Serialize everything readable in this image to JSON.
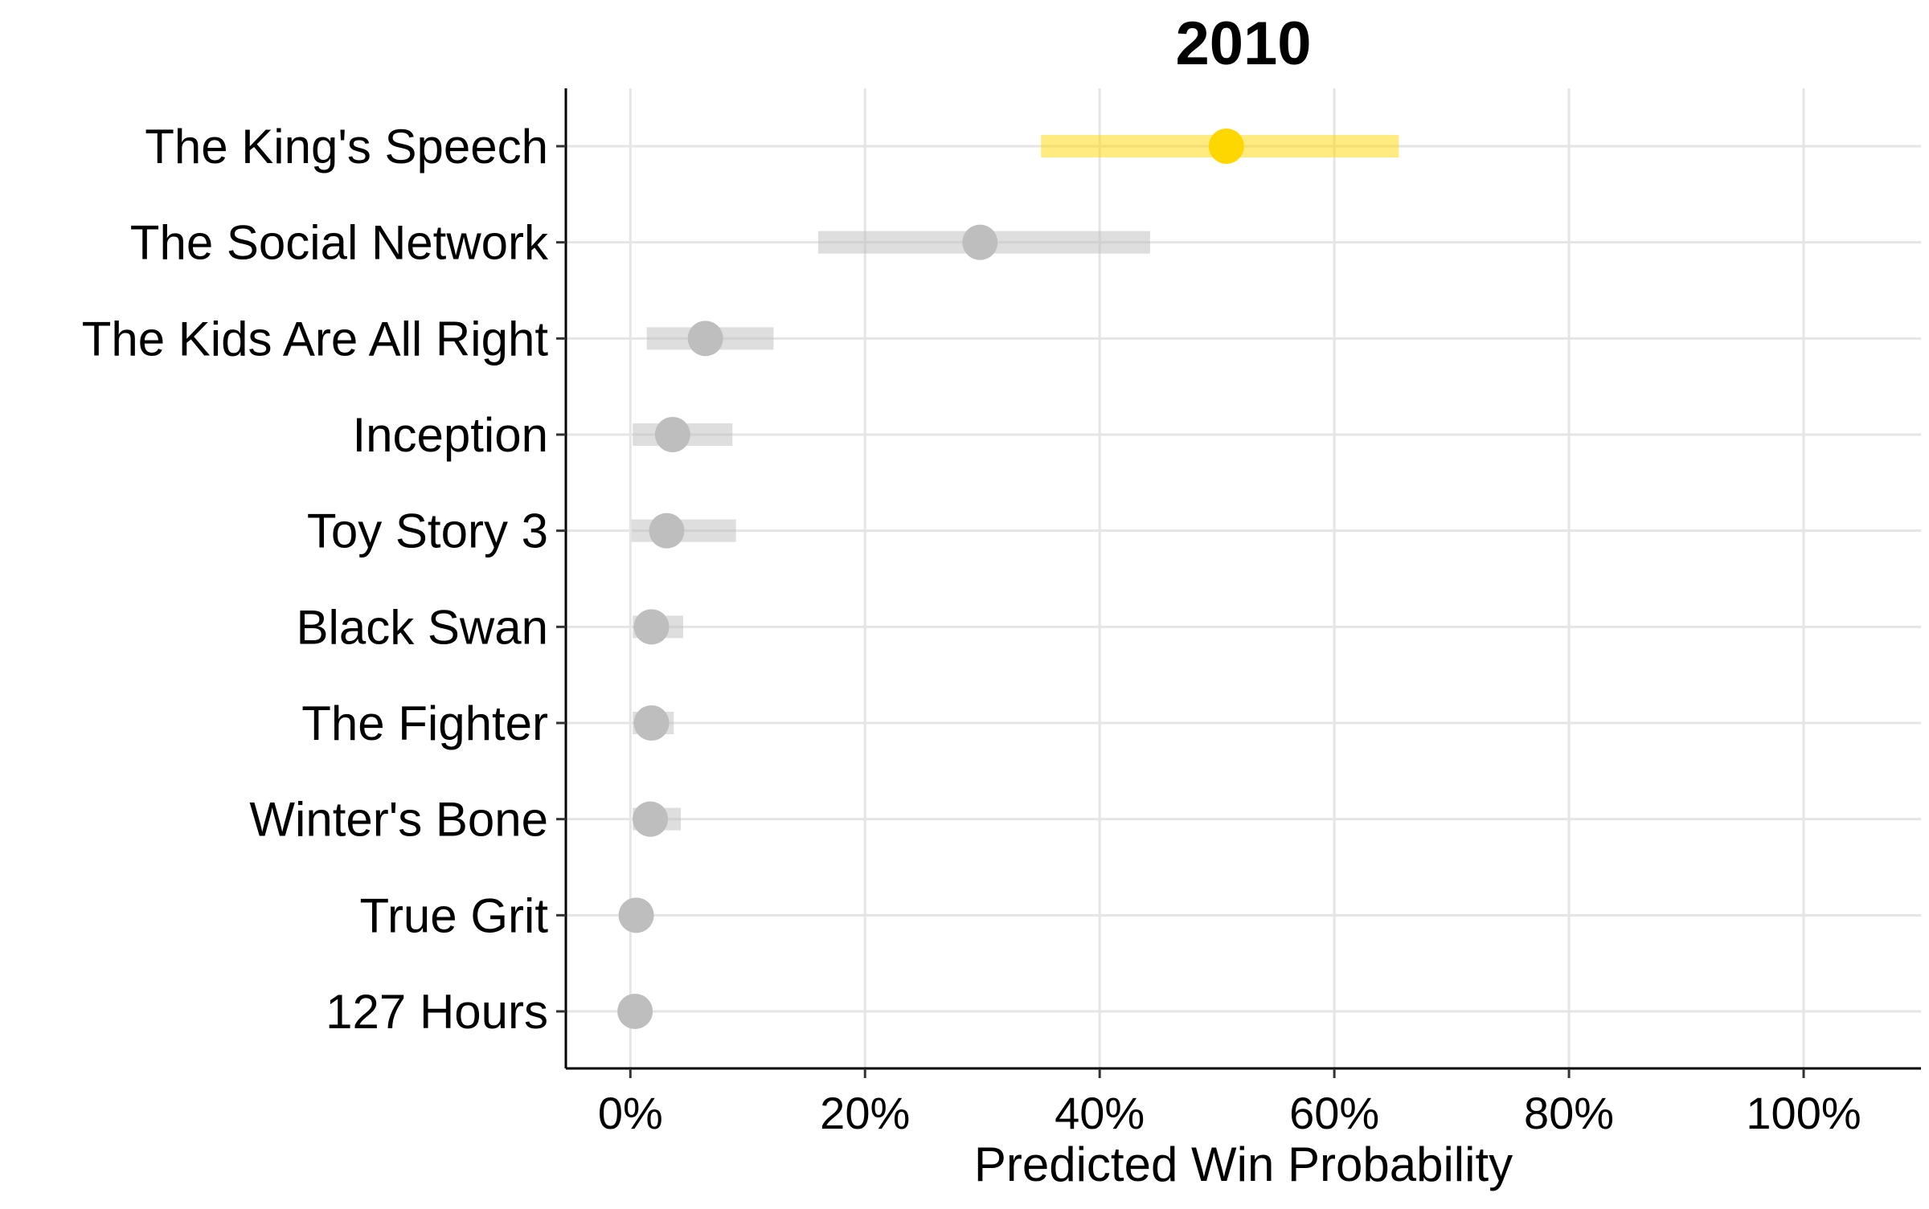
{
  "chart_data": {
    "type": "dot-interval",
    "title": "2010",
    "xlabel": "Predicted Win Probability",
    "ylabel": "",
    "xlim": [
      -0.055,
      1.1
    ],
    "x_ticks": [
      0,
      0.2,
      0.4,
      0.6,
      0.8,
      1.0
    ],
    "x_tick_labels": [
      "0%",
      "20%",
      "40%",
      "60%",
      "80%",
      "100%"
    ],
    "grid": true,
    "legend": "none",
    "colors": {
      "highlight": "#FFD700",
      "default": "#BEBEBE",
      "grid": "#E5E5E5",
      "axis": "#000000"
    },
    "categories": [
      "The King's Speech",
      "The Social Network",
      "The Kids Are All Right",
      "Inception",
      "Toy Story 3",
      "Black Swan",
      "The Fighter",
      "Winter's Bone",
      "True Grit",
      "127 Hours"
    ],
    "values": [
      0.508,
      0.298,
      0.064,
      0.036,
      0.031,
      0.018,
      0.018,
      0.017,
      0.005,
      0.004
    ],
    "lower": [
      0.35,
      0.16,
      0.014,
      0.002,
      0.001,
      0.002,
      0.002,
      0.002,
      0.0,
      0.0
    ],
    "upper": [
      0.655,
      0.443,
      0.122,
      0.087,
      0.09,
      0.045,
      0.037,
      0.043,
      0.012,
      0.01
    ],
    "highlighted": [
      "The King's Speech"
    ]
  }
}
